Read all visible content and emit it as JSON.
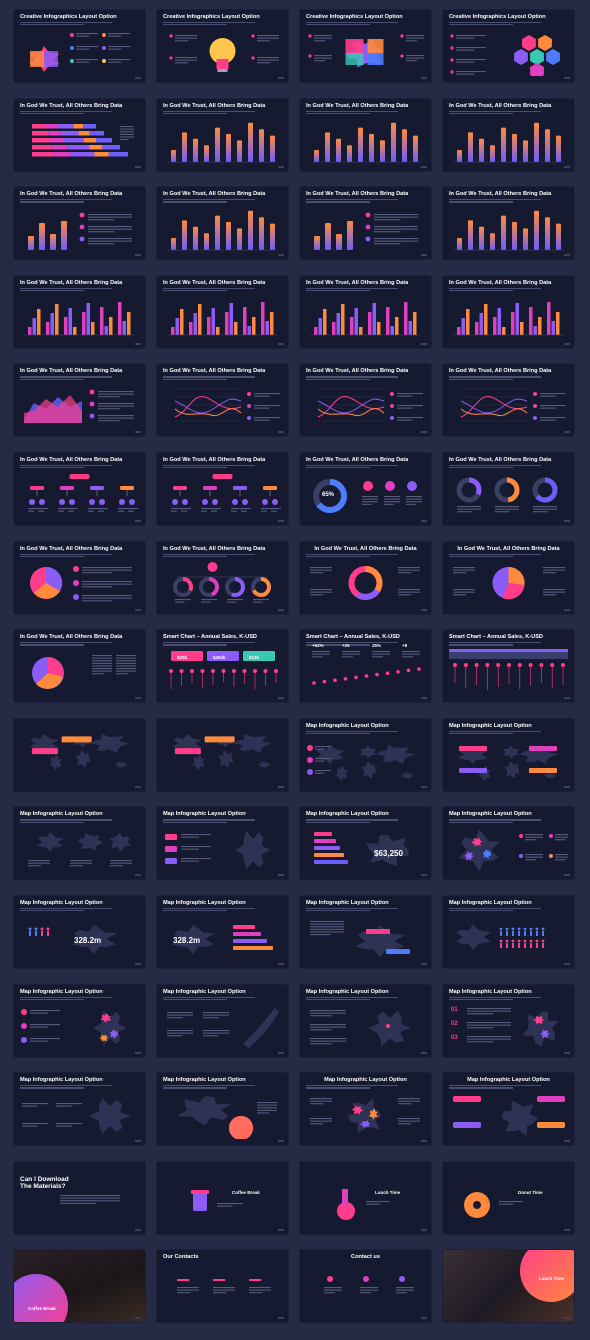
{
  "palette": {
    "background": "#252a45",
    "card": "#161a30",
    "pink": "#ff3d8b",
    "magenta": "#e03fbf",
    "purple": "#8b5cf6",
    "violet": "#6d5dfc",
    "orange": "#ff8a3d",
    "yellow": "#ffc54d",
    "blue": "#4d7cfe",
    "teal": "#38c9b5"
  },
  "slides": [
    {
      "title": "Creative Infographics Layout Option",
      "kind": "piggy"
    },
    {
      "title": "Creative Infographics Layout Option",
      "kind": "bulb"
    },
    {
      "title": "Creative Infographics Layout Option",
      "kind": "brain"
    },
    {
      "title": "Creative Infographics Layout Option",
      "kind": "hexagons"
    },
    {
      "title": "In God We Trust, All Others Bring Data",
      "kind": "hbars"
    },
    {
      "title": "In God We Trust, All Others Bring Data",
      "kind": "bars"
    },
    {
      "title": "In God We Trust, All Others Bring Data",
      "kind": "bars"
    },
    {
      "title": "In God We Trust, All Others Bring Data",
      "kind": "bars"
    },
    {
      "title": "In God We Trust, All Others Bring Data",
      "kind": "bars-list"
    },
    {
      "title": "In God We Trust, All Others Bring Data",
      "kind": "bars"
    },
    {
      "title": "In God We Trust, All Others Bring Data",
      "kind": "bars-list"
    },
    {
      "title": "In God We Trust, All Others Bring Data",
      "kind": "bars"
    },
    {
      "title": "In God We Trust, All Others Bring Data",
      "kind": "grouped"
    },
    {
      "title": "In God We Trust, All Others Bring Data",
      "kind": "grouped"
    },
    {
      "title": "In God We Trust, All Others Bring Data",
      "kind": "grouped"
    },
    {
      "title": "In God We Trust, All Others Bring Data",
      "kind": "grouped"
    },
    {
      "title": "In God We Trust, All Others Bring Data",
      "kind": "area"
    },
    {
      "title": "In God We Trust, All Others Bring Data",
      "kind": "lines"
    },
    {
      "title": "In God We Trust, All Others Bring Data",
      "kind": "lines"
    },
    {
      "title": "In God We Trust, All Others Bring Data",
      "kind": "lines"
    },
    {
      "title": "In God We Trust, All Others Bring Data",
      "kind": "tree"
    },
    {
      "title": "In God We Trust, All Others Bring Data",
      "kind": "tree"
    },
    {
      "title": "In God We Trust, All Others Bring Data",
      "kind": "donut",
      "label": "65%"
    },
    {
      "title": "In God We Trust, All Others Bring Data",
      "kind": "donuts3"
    },
    {
      "title": "In God We Trust, All Others Bring Data",
      "kind": "pie-list"
    },
    {
      "title": "In God We Trust, All Others Bring Data",
      "kind": "donuts4"
    },
    {
      "title": "In God We Trust, All Others Bring Data",
      "kind": "donut-labels"
    },
    {
      "title": "In God We Trust, All Others Bring Data",
      "kind": "pie-labels"
    },
    {
      "title": "In God We Trust, All Others Bring Data",
      "kind": "pie"
    },
    {
      "title": "Smart Chart – Annual Sales, K-USD",
      "kind": "lollipop-tags",
      "tags": [
        "$25k",
        "$452k",
        "$12k"
      ]
    },
    {
      "title": "Smart Chart – Annual Sales, K-USD",
      "kind": "stats-line",
      "stats": [
        "+52%",
        "+25",
        "25%",
        "+8"
      ]
    },
    {
      "title": "Smart Chart – Annual Sales, K-USD",
      "kind": "lollipop-table"
    },
    {
      "title": "",
      "kind": "map-world-tag"
    },
    {
      "title": "",
      "kind": "map-world-tag"
    },
    {
      "title": "Map Infographic Layout Option",
      "kind": "map-world-list"
    },
    {
      "title": "Map Infographic Layout Option",
      "kind": "map-world-markers"
    },
    {
      "title": "Map Infographic Layout Option",
      "kind": "map-regions"
    },
    {
      "title": "Map Infographic Layout Option",
      "kind": "map-africa"
    },
    {
      "title": "Map Infographic Layout Option",
      "kind": "map-australia",
      "label": "$63,250"
    },
    {
      "title": "Map Infographic Layout Option",
      "kind": "map-europe"
    },
    {
      "title": "Map Infographic Layout Option",
      "kind": "map-usa-people",
      "label": "328.2m"
    },
    {
      "title": "Map Infographic Layout Option",
      "kind": "map-usa-bars",
      "label": "328.2m"
    },
    {
      "title": "Map Infographic Layout Option",
      "kind": "map-usa-tags"
    },
    {
      "title": "Map Infographic Layout Option",
      "kind": "map-usa-pct"
    },
    {
      "title": "Map Infographic Layout Option",
      "kind": "map-germany"
    },
    {
      "title": "Map Infographic Layout Option",
      "kind": "map-japan"
    },
    {
      "title": "Map Infographic Layout Option",
      "kind": "map-france"
    },
    {
      "title": "Map Infographic Layout Option",
      "kind": "map-numbered",
      "nums": [
        "01",
        "02",
        "03"
      ]
    },
    {
      "title": "Map Infographic Layout Option",
      "kind": "map-brazil"
    },
    {
      "title": "Map Infographic Layout Option",
      "kind": "map-china"
    },
    {
      "title": "Map Infographic Layout Option",
      "kind": "map-spain"
    },
    {
      "title": "Map Infographic Layout Option",
      "kind": "map-uk"
    },
    {
      "title": "Can I Download The Materials?",
      "kind": "question"
    },
    {
      "title": "Coffee Break",
      "kind": "coffee"
    },
    {
      "title": "Lunch Time",
      "kind": "lunch"
    },
    {
      "title": "Donut Time",
      "kind": "donut-break"
    },
    {
      "title": "Coffee Break",
      "kind": "photo-cupcakes"
    },
    {
      "title": "Our Contacts",
      "kind": "contacts"
    },
    {
      "title": "Contact us",
      "kind": "contacts-center"
    },
    {
      "title": "Lunch Time",
      "kind": "photo-lunch"
    }
  ]
}
